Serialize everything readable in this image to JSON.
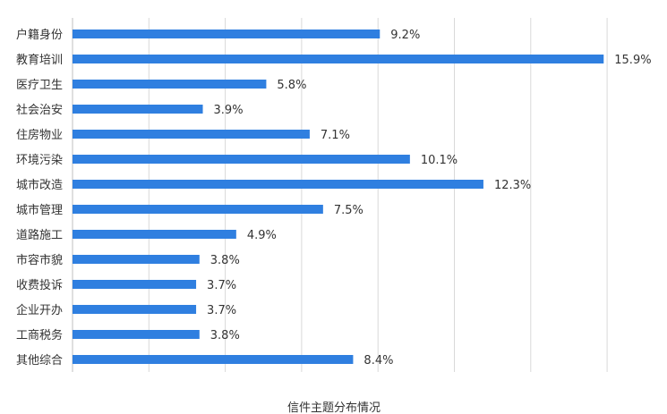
{
  "chart_data": {
    "type": "bar",
    "orientation": "horizontal",
    "title": "信件主题分布情况",
    "categories": [
      "户籍身份",
      "教育培训",
      "医疗卫生",
      "社会治安",
      "住房物业",
      "环境污染",
      "城市改造",
      "城市管理",
      "道路施工",
      "市容市貌",
      "收费投诉",
      "企业开办",
      "工商税务",
      "其他综合"
    ],
    "values": [
      9.2,
      15.9,
      5.8,
      3.9,
      7.1,
      10.1,
      12.3,
      7.5,
      4.9,
      3.8,
      3.7,
      3.7,
      3.8,
      8.4
    ],
    "value_labels": [
      "9.2%",
      "15.9%",
      "5.8%",
      "3.9%",
      "7.1%",
      "10.1%",
      "12.3%",
      "7.5%",
      "4.9%",
      "3.8%",
      "3.7%",
      "3.7%",
      "3.8%",
      "8.4%"
    ],
    "xlim": [
      0,
      16
    ],
    "grid": true,
    "bar_color": "#2f7fe0",
    "grid_color": "#d9d9d9"
  }
}
